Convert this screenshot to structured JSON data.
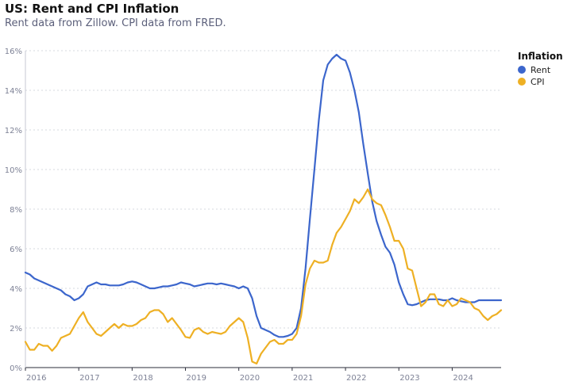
{
  "title": "US: Rent and CPI Inflation",
  "subtitle": "Rent data from Zillow. CPI data from FRED.",
  "chart_data": {
    "type": "line",
    "title": "US: Rent and CPI Inflation",
    "xlabel": "",
    "ylabel": "",
    "x_tick_labels": [
      "2016",
      "2017",
      "2018",
      "2019",
      "2020",
      "2021",
      "2022",
      "2023",
      "2024"
    ],
    "x_tick_values": [
      2016,
      2017,
      2018,
      2019,
      2020,
      2021,
      2022,
      2023,
      2024
    ],
    "y_tick_labels": [
      "0%",
      "2%",
      "4%",
      "6%",
      "8%",
      "10%",
      "12%",
      "14%",
      "16%"
    ],
    "y_tick_values": [
      0,
      2,
      4,
      6,
      8,
      10,
      12,
      14,
      16
    ],
    "xlim": [
      2016.0,
      2024.917
    ],
    "ylim": [
      0,
      16
    ],
    "grid": "horizontal dotted",
    "legend": {
      "title": "Inflation",
      "position": "right"
    },
    "x": [
      2016.0,
      2016.083,
      2016.167,
      2016.25,
      2016.333,
      2016.417,
      2016.5,
      2016.583,
      2016.667,
      2016.75,
      2016.833,
      2016.917,
      2017.0,
      2017.083,
      2017.167,
      2017.25,
      2017.333,
      2017.417,
      2017.5,
      2017.583,
      2017.667,
      2017.75,
      2017.833,
      2017.917,
      2018.0,
      2018.083,
      2018.167,
      2018.25,
      2018.333,
      2018.417,
      2018.5,
      2018.583,
      2018.667,
      2018.75,
      2018.833,
      2018.917,
      2019.0,
      2019.083,
      2019.167,
      2019.25,
      2019.333,
      2019.417,
      2019.5,
      2019.583,
      2019.667,
      2019.75,
      2019.833,
      2019.917,
      2020.0,
      2020.083,
      2020.167,
      2020.25,
      2020.333,
      2020.417,
      2020.5,
      2020.583,
      2020.667,
      2020.75,
      2020.833,
      2020.917,
      2021.0,
      2021.083,
      2021.167,
      2021.25,
      2021.333,
      2021.417,
      2021.5,
      2021.583,
      2021.667,
      2021.75,
      2021.833,
      2021.917,
      2022.0,
      2022.083,
      2022.167,
      2022.25,
      2022.333,
      2022.417,
      2022.5,
      2022.583,
      2022.667,
      2022.75,
      2022.833,
      2022.917,
      2023.0,
      2023.083,
      2023.167,
      2023.25,
      2023.333,
      2023.417,
      2023.5,
      2023.583,
      2023.667,
      2023.75,
      2023.833,
      2023.917,
      2024.0,
      2024.083,
      2024.167,
      2024.25,
      2024.333,
      2024.417,
      2024.5,
      2024.583,
      2024.667,
      2024.75,
      2024.833,
      2024.917
    ],
    "series": [
      {
        "name": "Rent",
        "color": "#3c66cc",
        "values": [
          4.8,
          4.7,
          4.5,
          4.4,
          4.3,
          4.2,
          4.1,
          4.0,
          3.9,
          3.7,
          3.6,
          3.4,
          3.5,
          3.7,
          4.1,
          4.2,
          4.3,
          4.2,
          4.2,
          4.15,
          4.15,
          4.15,
          4.2,
          4.3,
          4.35,
          4.3,
          4.2,
          4.1,
          4.0,
          4.0,
          4.05,
          4.1,
          4.1,
          4.15,
          4.2,
          4.3,
          4.25,
          4.2,
          4.1,
          4.15,
          4.2,
          4.25,
          4.25,
          4.2,
          4.25,
          4.2,
          4.15,
          4.1,
          4.0,
          4.1,
          4.0,
          3.5,
          2.6,
          2.0,
          1.9,
          1.8,
          1.65,
          1.55,
          1.55,
          1.6,
          1.7,
          2.0,
          3.0,
          5.0,
          7.5,
          10.0,
          12.5,
          14.5,
          15.3,
          15.6,
          15.8,
          15.6,
          15.5,
          14.9,
          14.0,
          12.9,
          11.3,
          9.8,
          8.4,
          7.4,
          6.7,
          6.1,
          5.8,
          5.2,
          4.3,
          3.7,
          3.2,
          3.15,
          3.2,
          3.3,
          3.4,
          3.45,
          3.45,
          3.45,
          3.4,
          3.4,
          3.5,
          3.4,
          3.35,
          3.3,
          3.3,
          3.3,
          3.4,
          3.4,
          3.4,
          3.4,
          3.4,
          3.4
        ]
      },
      {
        "name": "CPI",
        "color": "#eeb024",
        "values": [
          1.3,
          0.9,
          0.9,
          1.2,
          1.1,
          1.1,
          0.85,
          1.1,
          1.5,
          1.6,
          1.7,
          2.1,
          2.5,
          2.8,
          2.3,
          2.0,
          1.7,
          1.6,
          1.8,
          2.0,
          2.2,
          2.0,
          2.2,
          2.1,
          2.1,
          2.2,
          2.4,
          2.5,
          2.8,
          2.9,
          2.9,
          2.7,
          2.3,
          2.5,
          2.2,
          1.9,
          1.55,
          1.5,
          1.9,
          2.0,
          1.8,
          1.7,
          1.8,
          1.75,
          1.7,
          1.8,
          2.1,
          2.3,
          2.5,
          2.3,
          1.5,
          0.3,
          0.2,
          0.7,
          1.0,
          1.3,
          1.4,
          1.2,
          1.2,
          1.4,
          1.4,
          1.7,
          2.6,
          4.2,
          5.0,
          5.4,
          5.3,
          5.3,
          5.4,
          6.2,
          6.8,
          7.1,
          7.5,
          7.9,
          8.5,
          8.3,
          8.6,
          9.0,
          8.5,
          8.3,
          8.2,
          7.7,
          7.1,
          6.4,
          6.4,
          6.0,
          5.0,
          4.9,
          4.0,
          3.1,
          3.3,
          3.7,
          3.7,
          3.2,
          3.1,
          3.4,
          3.1,
          3.2,
          3.5,
          3.4,
          3.3,
          3.0,
          2.9,
          2.6,
          2.4,
          2.6,
          2.7,
          2.9
        ]
      }
    ]
  }
}
